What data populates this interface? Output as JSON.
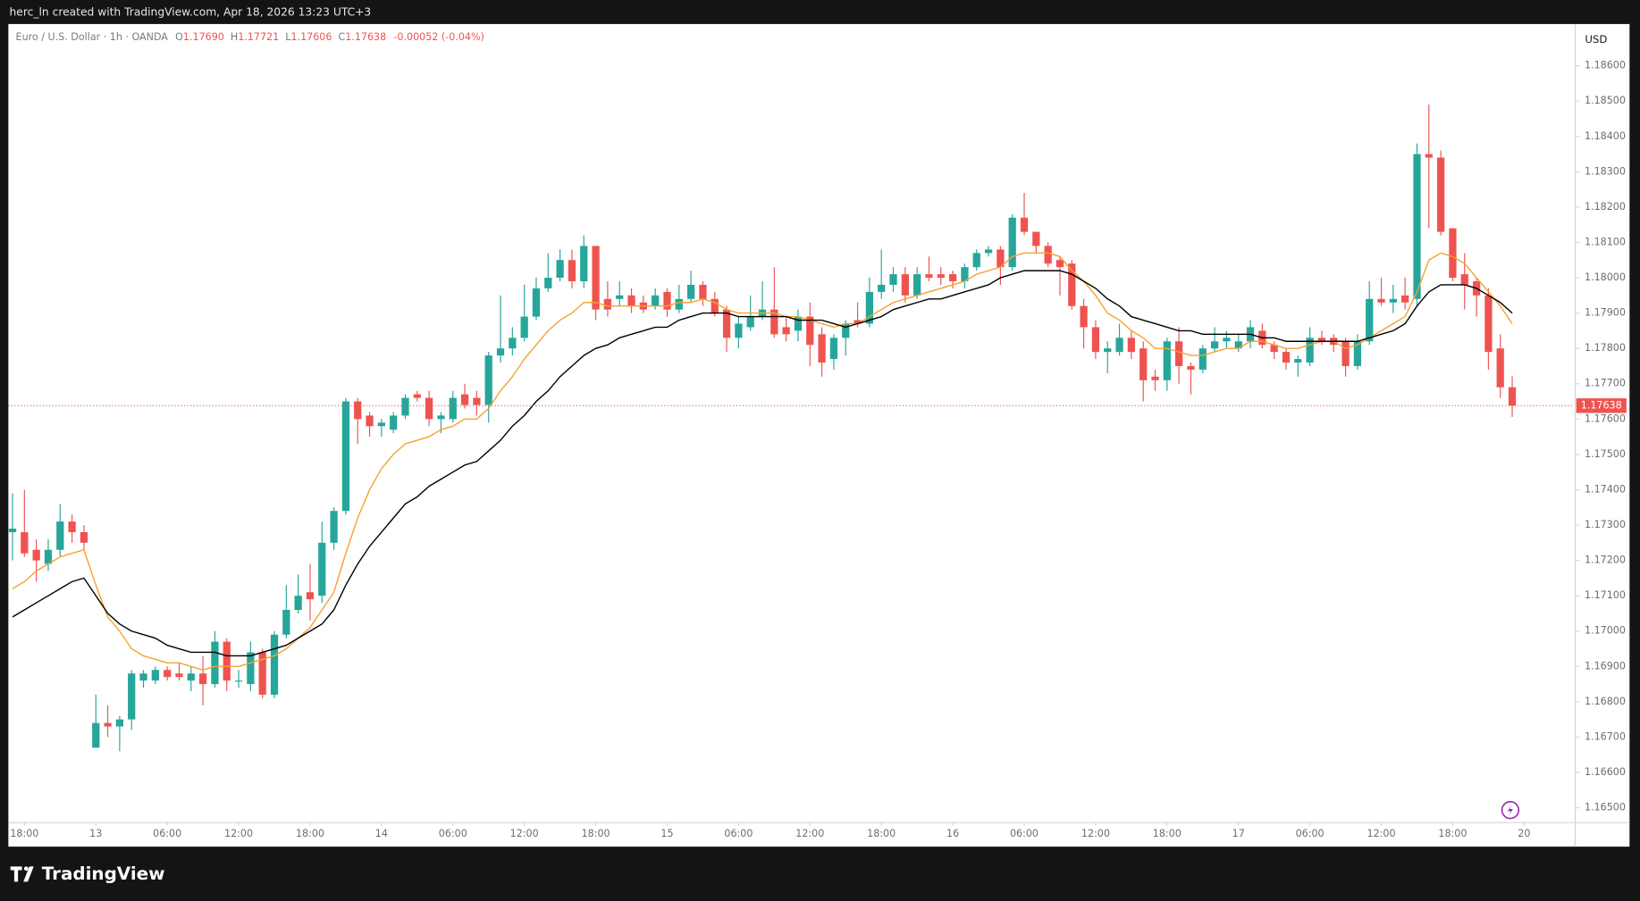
{
  "top_bar": "herc_ln created with TradingView.com, Apr 18, 2026 13:23 UTC+3",
  "brand": "TradingView",
  "chart_data": {
    "type": "candlestick",
    "header": {
      "symbol": "Euro / U.S. Dollar · 1h · OANDA",
      "o_key": "O",
      "open": "1.17690",
      "h_key": "H",
      "high": "1.17721",
      "l_key": "L",
      "low": "1.17606",
      "c_key": "C",
      "close": "1.17638",
      "change": "-0.00052 (-0.04%)"
    },
    "y_unit": "USD",
    "up_color": "#26a69a",
    "down_color": "#ef5350",
    "grid": false,
    "xlim": [
      -0.35,
      131.2
    ],
    "xticks": [
      {
        "value": 1,
        "label": "18:00"
      },
      {
        "value": 7,
        "label": "13"
      },
      {
        "value": 13,
        "label": "06:00"
      },
      {
        "value": 19,
        "label": "12:00"
      },
      {
        "value": 25,
        "label": "18:00"
      },
      {
        "value": 31,
        "label": "14"
      },
      {
        "value": 37,
        "label": "06:00"
      },
      {
        "value": 43,
        "label": "12:00"
      },
      {
        "value": 49,
        "label": "18:00"
      },
      {
        "value": 55,
        "label": "15"
      },
      {
        "value": 61,
        "label": "06:00"
      },
      {
        "value": 67,
        "label": "12:00"
      },
      {
        "value": 73,
        "label": "18:00"
      },
      {
        "value": 79,
        "label": "16"
      },
      {
        "value": 85,
        "label": "06:00"
      },
      {
        "value": 91,
        "label": "12:00"
      },
      {
        "value": 97,
        "label": "18:00"
      },
      {
        "value": 103,
        "label": "17"
      },
      {
        "value": 109,
        "label": "06:00"
      },
      {
        "value": 115,
        "label": "12:00"
      },
      {
        "value": 121,
        "label": "18:00"
      },
      {
        "value": 127,
        "label": "20"
      }
    ],
    "ylim": [
      1.16458,
      1.18718
    ],
    "yticks": [
      {
        "value": 1.165,
        "label": "1.16500"
      },
      {
        "value": 1.166,
        "label": "1.16600"
      },
      {
        "value": 1.167,
        "label": "1.16700"
      },
      {
        "value": 1.168,
        "label": "1.16800"
      },
      {
        "value": 1.169,
        "label": "1.16900"
      },
      {
        "value": 1.17,
        "label": "1.17000"
      },
      {
        "value": 1.171,
        "label": "1.17100"
      },
      {
        "value": 1.172,
        "label": "1.17200"
      },
      {
        "value": 1.173,
        "label": "1.17300"
      },
      {
        "value": 1.174,
        "label": "1.17400"
      },
      {
        "value": 1.175,
        "label": "1.17500"
      },
      {
        "value": 1.176,
        "label": "1.17600"
      },
      {
        "value": 1.177,
        "label": "1.17700"
      },
      {
        "value": 1.178,
        "label": "1.17800"
      },
      {
        "value": 1.179,
        "label": "1.17900"
      },
      {
        "value": 1.18,
        "label": "1.18000"
      },
      {
        "value": 1.181,
        "label": "1.18100"
      },
      {
        "value": 1.182,
        "label": "1.18200"
      },
      {
        "value": 1.183,
        "label": "1.18300"
      },
      {
        "value": 1.184,
        "label": "1.18400"
      },
      {
        "value": 1.185,
        "label": "1.18500"
      },
      {
        "value": 1.186,
        "label": "1.18600"
      }
    ],
    "candles": [
      [
        1.1728,
        1.1739,
        1.172,
        1.1729
      ],
      [
        1.1728,
        1.174,
        1.1721,
        1.1722
      ],
      [
        1.1723,
        1.1726,
        1.1714,
        1.172
      ],
      [
        1.1719,
        1.1726,
        1.1717,
        1.1723
      ],
      [
        1.1723,
        1.1736,
        1.1721,
        1.1731
      ],
      [
        1.1731,
        1.1733,
        1.1725,
        1.1728
      ],
      [
        1.1728,
        1.173,
        1.1723,
        1.1725
      ],
      [
        1.1667,
        1.1682,
        1.1667,
        1.1674
      ],
      [
        1.1674,
        1.1679,
        1.167,
        1.1673
      ],
      [
        1.1673,
        1.1676,
        1.1666,
        1.1675
      ],
      [
        1.1675,
        1.1689,
        1.1672,
        1.1688
      ],
      [
        1.1686,
        1.1689,
        1.1684,
        1.1688
      ],
      [
        1.1686,
        1.169,
        1.1685,
        1.1689
      ],
      [
        1.1689,
        1.169,
        1.1686,
        1.1687
      ],
      [
        1.1688,
        1.1691,
        1.1686,
        1.1687
      ],
      [
        1.1686,
        1.169,
        1.1683,
        1.1688
      ],
      [
        1.1688,
        1.1693,
        1.1679,
        1.1685
      ],
      [
        1.1685,
        1.17,
        1.1684,
        1.1697
      ],
      [
        1.1697,
        1.1698,
        1.1683,
        1.1686
      ],
      [
        1.1686,
        1.1689,
        1.1684,
        1.1686
      ],
      [
        1.1685,
        1.1697,
        1.1683,
        1.1694
      ],
      [
        1.1694,
        1.1695,
        1.1681,
        1.1682
      ],
      [
        1.1682,
        1.17,
        1.1681,
        1.1699
      ],
      [
        1.1699,
        1.1713,
        1.1698,
        1.1706
      ],
      [
        1.1706,
        1.1716,
        1.1705,
        1.171
      ],
      [
        1.1711,
        1.1719,
        1.1703,
        1.1709
      ],
      [
        1.171,
        1.1731,
        1.1708,
        1.1725
      ],
      [
        1.1725,
        1.1735,
        1.1723,
        1.1734
      ],
      [
        1.1734,
        1.1766,
        1.1733,
        1.1765
      ],
      [
        1.1765,
        1.1766,
        1.1753,
        1.176
      ],
      [
        1.1761,
        1.1762,
        1.1755,
        1.1758
      ],
      [
        1.1758,
        1.176,
        1.1755,
        1.1759
      ],
      [
        1.1757,
        1.1762,
        1.1756,
        1.1761
      ],
      [
        1.1761,
        1.1767,
        1.176,
        1.1766
      ],
      [
        1.1767,
        1.1768,
        1.1765,
        1.1766
      ],
      [
        1.1766,
        1.1768,
        1.1758,
        1.176
      ],
      [
        1.176,
        1.1762,
        1.1756,
        1.1761
      ],
      [
        1.176,
        1.1768,
        1.1759,
        1.1766
      ],
      [
        1.1767,
        1.177,
        1.1763,
        1.1764
      ],
      [
        1.1766,
        1.1768,
        1.1761,
        1.1764
      ],
      [
        1.1764,
        1.1779,
        1.1759,
        1.1778
      ],
      [
        1.1778,
        1.1795,
        1.1776,
        1.178
      ],
      [
        1.178,
        1.1786,
        1.1778,
        1.1783
      ],
      [
        1.1783,
        1.1798,
        1.1782,
        1.1789
      ],
      [
        1.1789,
        1.18,
        1.1788,
        1.1797
      ],
      [
        1.1797,
        1.1807,
        1.1796,
        1.18
      ],
      [
        1.18,
        1.1808,
        1.1799,
        1.1805
      ],
      [
        1.1805,
        1.1808,
        1.1797,
        1.1799
      ],
      [
        1.1799,
        1.1812,
        1.1797,
        1.1809
      ],
      [
        1.1809,
        1.1809,
        1.1788,
        1.1791
      ],
      [
        1.1794,
        1.1799,
        1.1789,
        1.1791
      ],
      [
        1.1794,
        1.1799,
        1.1792,
        1.1795
      ],
      [
        1.1795,
        1.1797,
        1.179,
        1.1792
      ],
      [
        1.1793,
        1.1795,
        1.179,
        1.1791
      ],
      [
        1.1792,
        1.1797,
        1.1791,
        1.1795
      ],
      [
        1.1796,
        1.1797,
        1.1789,
        1.1791
      ],
      [
        1.1791,
        1.1798,
        1.179,
        1.1794
      ],
      [
        1.1794,
        1.1802,
        1.1793,
        1.1798
      ],
      [
        1.1798,
        1.1799,
        1.1792,
        1.1794
      ],
      [
        1.1794,
        1.1796,
        1.1789,
        1.179
      ],
      [
        1.1791,
        1.1792,
        1.1779,
        1.1783
      ],
      [
        1.1783,
        1.1789,
        1.178,
        1.1787
      ],
      [
        1.1786,
        1.1795,
        1.1785,
        1.1789
      ],
      [
        1.1789,
        1.1799,
        1.1788,
        1.1791
      ],
      [
        1.1791,
        1.1803,
        1.1783,
        1.1784
      ],
      [
        1.1786,
        1.1789,
        1.1782,
        1.1784
      ],
      [
        1.1785,
        1.1791,
        1.1782,
        1.1789
      ],
      [
        1.1789,
        1.1793,
        1.1775,
        1.1781
      ],
      [
        1.1784,
        1.1786,
        1.1772,
        1.1776
      ],
      [
        1.1777,
        1.1784,
        1.1774,
        1.1783
      ],
      [
        1.1783,
        1.1788,
        1.1778,
        1.1787
      ],
      [
        1.1788,
        1.1793,
        1.1786,
        1.1787
      ],
      [
        1.1787,
        1.18,
        1.1786,
        1.1796
      ],
      [
        1.1796,
        1.1808,
        1.1794,
        1.1798
      ],
      [
        1.1798,
        1.1803,
        1.1796,
        1.1801
      ],
      [
        1.1801,
        1.1803,
        1.1793,
        1.1795
      ],
      [
        1.1795,
        1.1803,
        1.1794,
        1.1801
      ],
      [
        1.1801,
        1.1806,
        1.1799,
        1.18
      ],
      [
        1.1801,
        1.1803,
        1.1798,
        1.18
      ],
      [
        1.1801,
        1.1802,
        1.1797,
        1.1799
      ],
      [
        1.1799,
        1.1804,
        1.1797,
        1.1803
      ],
      [
        1.1803,
        1.1808,
        1.1802,
        1.1807
      ],
      [
        1.1807,
        1.1809,
        1.1806,
        1.1808
      ],
      [
        1.1808,
        1.1809,
        1.1798,
        1.1803
      ],
      [
        1.1803,
        1.1818,
        1.1802,
        1.1817
      ],
      [
        1.1817,
        1.1824,
        1.1812,
        1.1813
      ],
      [
        1.1813,
        1.1813,
        1.1807,
        1.1809
      ],
      [
        1.1809,
        1.181,
        1.1803,
        1.1804
      ],
      [
        1.1805,
        1.1806,
        1.1795,
        1.1803
      ],
      [
        1.1804,
        1.1805,
        1.1791,
        1.1792
      ],
      [
        1.1792,
        1.1794,
        1.178,
        1.1786
      ],
      [
        1.1786,
        1.1788,
        1.1777,
        1.1779
      ],
      [
        1.1779,
        1.1782,
        1.1773,
        1.178
      ],
      [
        1.1779,
        1.1787,
        1.1778,
        1.1783
      ],
      [
        1.1783,
        1.1785,
        1.1777,
        1.1779
      ],
      [
        1.178,
        1.1782,
        1.1765,
        1.1771
      ],
      [
        1.1772,
        1.1774,
        1.1768,
        1.1771
      ],
      [
        1.1771,
        1.1783,
        1.1768,
        1.1782
      ],
      [
        1.1782,
        1.1786,
        1.177,
        1.1775
      ],
      [
        1.1775,
        1.1776,
        1.1767,
        1.1774
      ],
      [
        1.1774,
        1.1781,
        1.1773,
        1.178
      ],
      [
        1.178,
        1.1786,
        1.1779,
        1.1782
      ],
      [
        1.1782,
        1.1785,
        1.178,
        1.1783
      ],
      [
        1.178,
        1.1784,
        1.1779,
        1.1782
      ],
      [
        1.1782,
        1.1788,
        1.178,
        1.1786
      ],
      [
        1.1785,
        1.1787,
        1.178,
        1.1781
      ],
      [
        1.1781,
        1.1782,
        1.1777,
        1.1779
      ],
      [
        1.1779,
        1.178,
        1.1774,
        1.1776
      ],
      [
        1.1776,
        1.1778,
        1.1772,
        1.1777
      ],
      [
        1.1776,
        1.1786,
        1.1775,
        1.1783
      ],
      [
        1.1783,
        1.1785,
        1.1781,
        1.1782
      ],
      [
        1.1783,
        1.1784,
        1.1779,
        1.1781
      ],
      [
        1.1782,
        1.1783,
        1.1772,
        1.1775
      ],
      [
        1.1775,
        1.1784,
        1.1774,
        1.1782
      ],
      [
        1.1782,
        1.1799,
        1.1781,
        1.1794
      ],
      [
        1.1794,
        1.18,
        1.1792,
        1.1793
      ],
      [
        1.1793,
        1.1798,
        1.179,
        1.1794
      ],
      [
        1.1795,
        1.18,
        1.1791,
        1.1793
      ],
      [
        1.1794,
        1.1838,
        1.1792,
        1.1835
      ],
      [
        1.1835,
        1.1849,
        1.1814,
        1.1834
      ],
      [
        1.1834,
        1.1836,
        1.1812,
        1.1813
      ],
      [
        1.1814,
        1.1814,
        1.1799,
        1.18
      ],
      [
        1.1801,
        1.1807,
        1.1791,
        1.1798
      ],
      [
        1.1799,
        1.18,
        1.1789,
        1.1795
      ],
      [
        1.1795,
        1.1797,
        1.1774,
        1.1779
      ],
      [
        1.178,
        1.1784,
        1.1766,
        1.1769
      ],
      [
        1.1769,
        1.17721,
        1.17606,
        1.17638
      ]
    ],
    "series": [
      {
        "color": "#f7a12f",
        "values": [
          1.1712,
          1.1714,
          1.1717,
          1.1719,
          1.1721,
          1.1722,
          1.1723,
          1.1713,
          1.1704,
          1.17,
          1.1695,
          1.1693,
          1.1692,
          1.1691,
          1.1691,
          1.169,
          1.1689,
          1.169,
          1.169,
          1.169,
          1.1691,
          1.1692,
          1.1693,
          1.1695,
          1.1698,
          1.1701,
          1.1706,
          1.1711,
          1.1722,
          1.1732,
          1.174,
          1.1746,
          1.175,
          1.1753,
          1.1754,
          1.1755,
          1.1757,
          1.1758,
          1.176,
          1.176,
          1.1763,
          1.1768,
          1.1772,
          1.1777,
          1.1781,
          1.1785,
          1.1788,
          1.179,
          1.1793,
          1.1793,
          1.1792,
          1.1792,
          1.1792,
          1.1792,
          1.1792,
          1.1792,
          1.1793,
          1.1793,
          1.1794,
          1.1793,
          1.1791,
          1.179,
          1.179,
          1.179,
          1.179,
          1.1789,
          1.1789,
          1.1788,
          1.1787,
          1.1786,
          1.1787,
          1.1787,
          1.1789,
          1.1791,
          1.1793,
          1.1794,
          1.1795,
          1.1796,
          1.1797,
          1.1798,
          1.1799,
          1.1801,
          1.1802,
          1.1803,
          1.1806,
          1.1807,
          1.1807,
          1.1807,
          1.1806,
          1.1802,
          1.1799,
          1.1795,
          1.179,
          1.1788,
          1.1785,
          1.1783,
          1.178,
          1.178,
          1.1779,
          1.1778,
          1.1778,
          1.1779,
          1.178,
          1.178,
          1.1782,
          1.1782,
          1.1781,
          1.178,
          1.178,
          1.1781,
          1.1782,
          1.1782,
          1.178,
          1.1781,
          1.1783,
          1.1785,
          1.1787,
          1.1789,
          1.1796,
          1.1805,
          1.1807,
          1.1806,
          1.1804,
          1.18,
          1.1796,
          1.1792,
          1.1787
        ]
      },
      {
        "color": "#000000",
        "values": [
          1.1704,
          1.1706,
          1.1708,
          1.171,
          1.1712,
          1.1714,
          1.1715,
          1.171,
          1.1705,
          1.1702,
          1.17,
          1.1699,
          1.1698,
          1.1696,
          1.1695,
          1.1694,
          1.1694,
          1.1694,
          1.1693,
          1.1693,
          1.1693,
          1.1694,
          1.1695,
          1.1696,
          1.1698,
          1.17,
          1.1702,
          1.1706,
          1.1713,
          1.1719,
          1.1724,
          1.1728,
          1.1732,
          1.1736,
          1.1738,
          1.1741,
          1.1743,
          1.1745,
          1.1747,
          1.1748,
          1.1751,
          1.1754,
          1.1758,
          1.1761,
          1.1765,
          1.1768,
          1.1772,
          1.1775,
          1.1778,
          1.178,
          1.1781,
          1.1783,
          1.1784,
          1.1785,
          1.1786,
          1.1786,
          1.1788,
          1.1789,
          1.179,
          1.179,
          1.179,
          1.1789,
          1.1789,
          1.1789,
          1.1789,
          1.1789,
          1.1788,
          1.1788,
          1.1788,
          1.1787,
          1.1786,
          1.1787,
          1.1788,
          1.1789,
          1.1791,
          1.1792,
          1.1793,
          1.1794,
          1.1794,
          1.1795,
          1.1796,
          1.1797,
          1.1798,
          1.18,
          1.1801,
          1.1802,
          1.1802,
          1.1802,
          1.1802,
          1.1801,
          1.1799,
          1.1797,
          1.1794,
          1.1792,
          1.1789,
          1.1788,
          1.1787,
          1.1786,
          1.1785,
          1.1785,
          1.1784,
          1.1784,
          1.1784,
          1.1784,
          1.1784,
          1.1783,
          1.1783,
          1.1782,
          1.1782,
          1.1782,
          1.1782,
          1.1782,
          1.1782,
          1.1782,
          1.1783,
          1.1784,
          1.1785,
          1.1787,
          1.1792,
          1.1796,
          1.1798,
          1.1798,
          1.1798,
          1.1797,
          1.1795,
          1.1793,
          1.179
        ]
      }
    ]
  }
}
